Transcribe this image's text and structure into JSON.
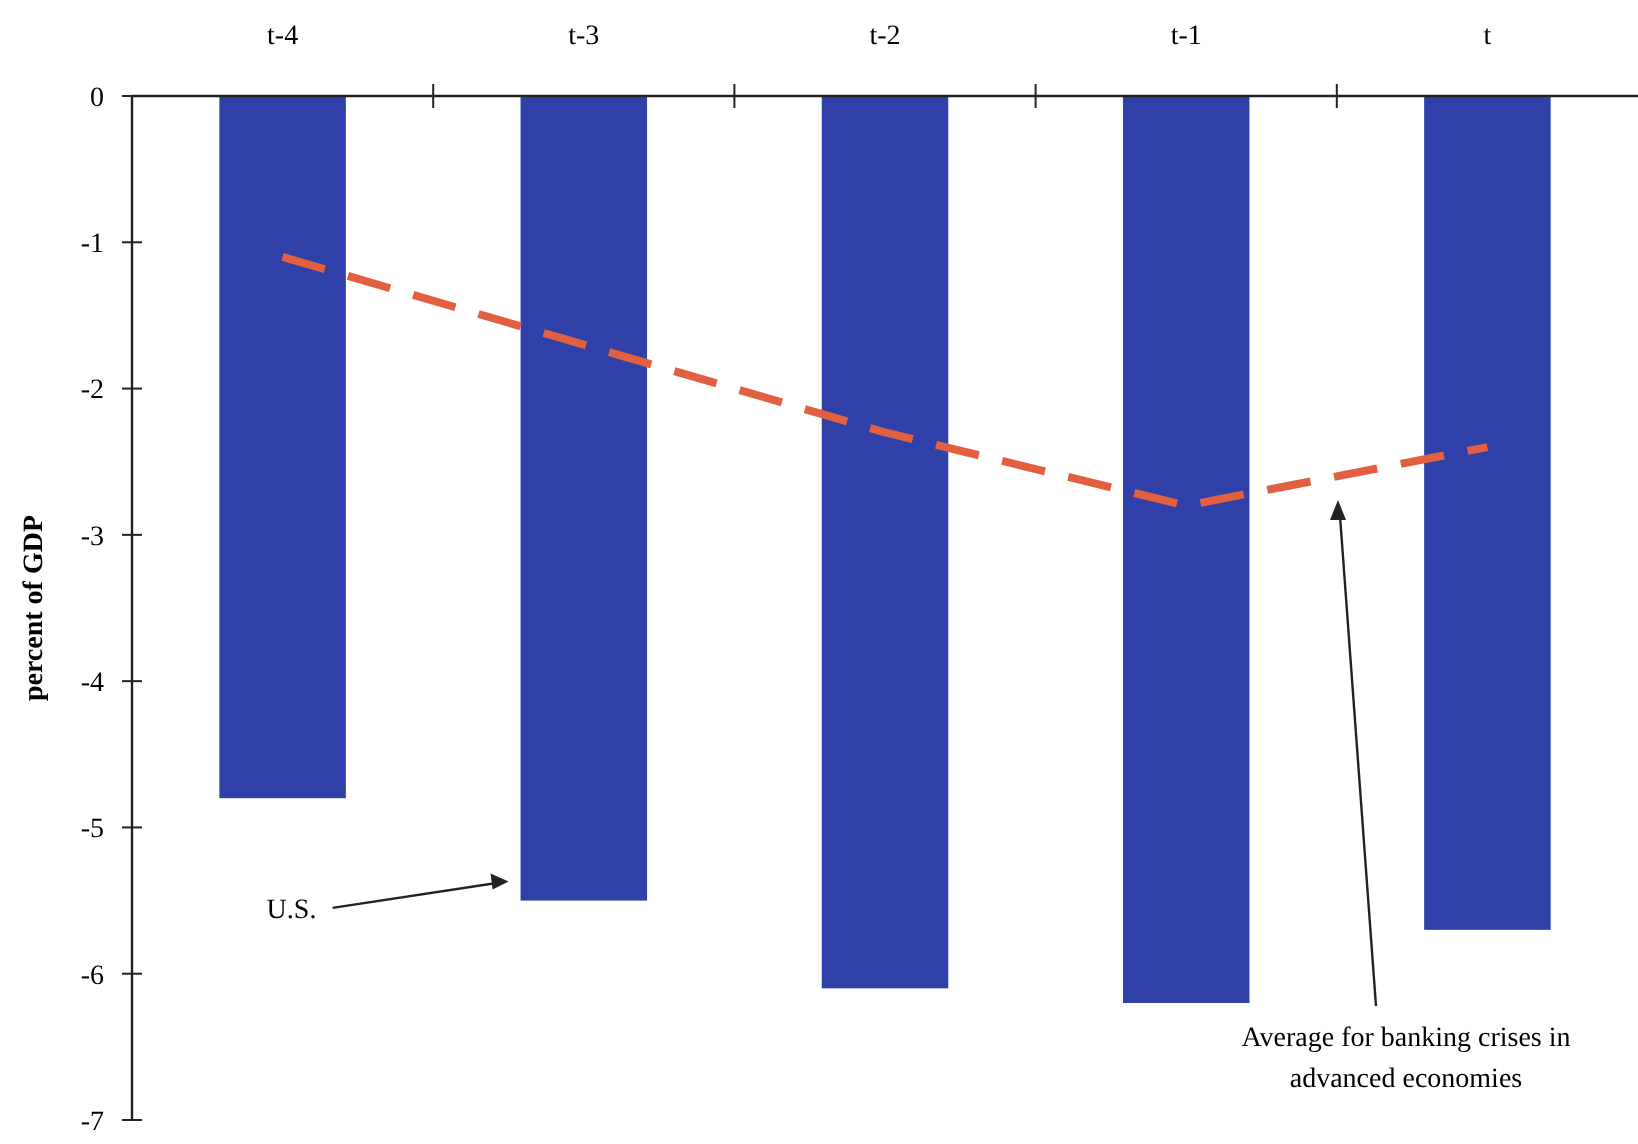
{
  "chart_data": {
    "type": "bar",
    "ylabel": "percent of GDP",
    "categories": [
      "t-4",
      "t-3",
      "t-2",
      "t-1",
      "t"
    ],
    "series": [
      {
        "color": "#2f40a8",
        "values": [
          -4.8,
          -5.5,
          -6.1,
          -6.2,
          -5.7
        ]
      },
      {
        "type": "line",
        "color": "#e2603f",
        "line_style": "dashed",
        "values": [
          -1.1,
          -1.7,
          -2.3,
          -2.8,
          -2.4
        ]
      }
    ],
    "ylim": [
      -7,
      0
    ],
    "yticks": [
      -7,
      -6,
      -5,
      -4,
      -3,
      -2,
      -1,
      0
    ],
    "grid": false,
    "marker": "none",
    "annotations": [
      "U.S.",
      "Average for banking crises in advanced economies"
    ]
  }
}
